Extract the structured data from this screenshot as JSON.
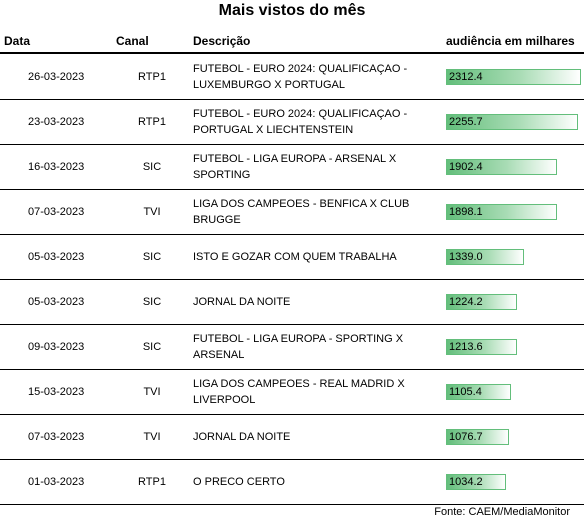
{
  "title": "Mais vistos do mês",
  "headers": {
    "data": "Data",
    "canal": "Canal",
    "descricao": "Descrição",
    "audiencia": "audiência em milhares"
  },
  "source": "Fonte: CAEM/MediaMonitor",
  "chart_data": {
    "type": "table",
    "title": "Mais vistos do mês",
    "columns": [
      "Data",
      "Canal",
      "Descrição",
      "audiência em milhares"
    ],
    "bar_max": 2312.4,
    "bar_color": "#63be7b",
    "rows": [
      {
        "date": "26-03-2023",
        "channel": "RTP1",
        "description": "FUTEBOL - EURO 2024: QUALIFICAÇAO - LUXEMBURGO X PORTUGAL",
        "audience": 2312.4,
        "audience_label": "2312.4"
      },
      {
        "date": "23-03-2023",
        "channel": "RTP1",
        "description": "FUTEBOL - EURO 2024: QUALIFICAÇAO - PORTUGAL X LIECHTENSTEIN",
        "audience": 2255.7,
        "audience_label": "2255.7"
      },
      {
        "date": "16-03-2023",
        "channel": "SIC",
        "description": "FUTEBOL - LIGA EUROPA - ARSENAL X SPORTING",
        "audience": 1902.4,
        "audience_label": "1902.4"
      },
      {
        "date": "07-03-2023",
        "channel": "TVI",
        "description": "LIGA DOS CAMPEOES - BENFICA X CLUB BRUGGE",
        "audience": 1898.1,
        "audience_label": "1898.1"
      },
      {
        "date": "05-03-2023",
        "channel": "SIC",
        "description": "ISTO E GOZAR COM QUEM TRABALHA",
        "audience": 1339.0,
        "audience_label": "1339.0"
      },
      {
        "date": "05-03-2023",
        "channel": "SIC",
        "description": "JORNAL DA NOITE",
        "audience": 1224.2,
        "audience_label": "1224.2"
      },
      {
        "date": "09-03-2023",
        "channel": "SIC",
        "description": "FUTEBOL - LIGA EUROPA - SPORTING X ARSENAL",
        "audience": 1213.6,
        "audience_label": "1213.6"
      },
      {
        "date": "15-03-2023",
        "channel": "TVI",
        "description": "LIGA DOS CAMPEOES - REAL MADRID X LIVERPOOL",
        "audience": 1105.4,
        "audience_label": "1105.4"
      },
      {
        "date": "07-03-2023",
        "channel": "TVI",
        "description": "JORNAL DA NOITE",
        "audience": 1076.7,
        "audience_label": "1076.7"
      },
      {
        "date": "01-03-2023",
        "channel": "RTP1",
        "description": "O PRECO CERTO",
        "audience": 1034.2,
        "audience_label": "1034.2"
      }
    ]
  }
}
